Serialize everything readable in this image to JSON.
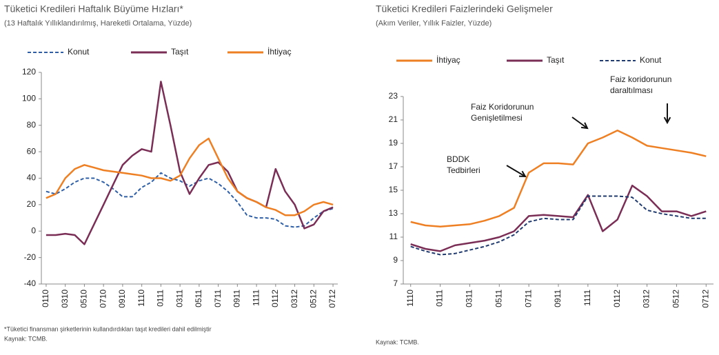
{
  "chart_data": [
    {
      "type": "line",
      "title": "Tüketici Kredileri Haftalık Büyüme Hızları*",
      "subtitle": "(13 Haftalık Yıllıklandırılmış, Hareketli Ortalama, Yüzde)",
      "categories": [
        "0110",
        null,
        "0310",
        null,
        "0510",
        null,
        "0710",
        null,
        "0910",
        null,
        "1110",
        null,
        "0111",
        null,
        "0311",
        null,
        "0511",
        null,
        "0711",
        null,
        "0911",
        null,
        "1111",
        null,
        "0112",
        null,
        "0312",
        null,
        "0512",
        null,
        "0712"
      ],
      "series": [
        {
          "name": "Konut",
          "color": "#2e5fa6",
          "line_style": "dashed",
          "values": [
            30,
            28,
            32,
            37,
            40,
            40,
            37,
            32,
            26,
            26,
            33,
            37,
            44,
            40,
            38,
            34,
            38,
            40,
            36,
            30,
            22,
            12,
            10,
            10,
            9,
            4,
            3,
            4,
            10,
            15,
            17
          ]
        },
        {
          "name": "Taşıt",
          "color": "#7a2d55",
          "line_style": "solid",
          "values": [
            -3,
            -3,
            -2,
            -3,
            -10,
            5,
            20,
            35,
            50,
            57,
            62,
            60,
            113,
            80,
            45,
            28,
            40,
            50,
            52,
            45,
            30,
            25,
            22,
            18,
            47,
            30,
            20,
            2,
            5,
            15,
            18
          ]
        },
        {
          "name": "İhtiyaç",
          "color": "#ee7f22",
          "line_style": "solid",
          "values": [
            25,
            28,
            40,
            47,
            50,
            48,
            46,
            45,
            44,
            43,
            42,
            40,
            40,
            38,
            42,
            55,
            65,
            70,
            55,
            40,
            30,
            25,
            22,
            18,
            16,
            12,
            12,
            15,
            20,
            22,
            20
          ]
        }
      ],
      "ylim": [
        -40,
        120
      ],
      "yticks": [
        -40,
        -20,
        0,
        20,
        40,
        60,
        80,
        100,
        120
      ],
      "notes": [
        "*Tüketici finansman şirketlerinin kullandırdıkları taşıt kredileri dahil edilmiştir",
        "Kaynak: TCMB."
      ]
    },
    {
      "type": "line",
      "title": "Tüketici Kredileri Faizlerindeki Gelişmeler",
      "subtitle": "(Akım Veriler, Yıllık Faizler, Yüzde)",
      "categories": [
        "1110",
        null,
        "0111",
        null,
        "0311",
        null,
        "0511",
        null,
        "0711",
        null,
        "0911",
        null,
        "1111",
        null,
        "0112",
        null,
        "0312",
        null,
        "0512",
        null,
        "0712"
      ],
      "series": [
        {
          "name": "İhtiyaç",
          "color": "#ee7f22",
          "line_style": "solid",
          "values": [
            12.3,
            12.0,
            11.9,
            12.0,
            12.1,
            12.4,
            12.8,
            13.5,
            16.5,
            17.3,
            17.3,
            17.2,
            19.0,
            19.5,
            20.1,
            19.5,
            18.8,
            18.6,
            18.4,
            18.2,
            17.9
          ]
        },
        {
          "name": "Taşıt",
          "color": "#7a2d55",
          "line_style": "solid",
          "values": [
            10.4,
            10.0,
            9.8,
            10.3,
            10.5,
            10.7,
            11.0,
            11.5,
            12.8,
            12.9,
            12.8,
            12.7,
            14.6,
            11.5,
            12.5,
            15.4,
            14.5,
            13.2,
            13.2,
            12.8,
            13.2
          ]
        },
        {
          "name": "Konut",
          "color": "#1f3a6e",
          "line_style": "dashed",
          "values": [
            10.2,
            9.8,
            9.5,
            9.6,
            9.9,
            10.2,
            10.6,
            11.2,
            12.3,
            12.6,
            12.5,
            12.5,
            14.5,
            14.5,
            14.5,
            14.4,
            13.3,
            13.0,
            12.8,
            12.6,
            12.6
          ]
        }
      ],
      "ylim": [
        7,
        23
      ],
      "yticks": [
        7,
        9,
        11,
        13,
        15,
        17,
        19,
        21,
        23
      ],
      "annotations": [
        {
          "lines": [
            "BDDK",
            "Tedbirleri"
          ]
        },
        {
          "lines": [
            "Faiz Koridorunun",
            "Genişletilmesi"
          ]
        },
        {
          "lines": [
            "Faiz koridorunun",
            "daraltılması"
          ]
        }
      ],
      "notes": [
        "Kaynak: TCMB."
      ]
    }
  ]
}
